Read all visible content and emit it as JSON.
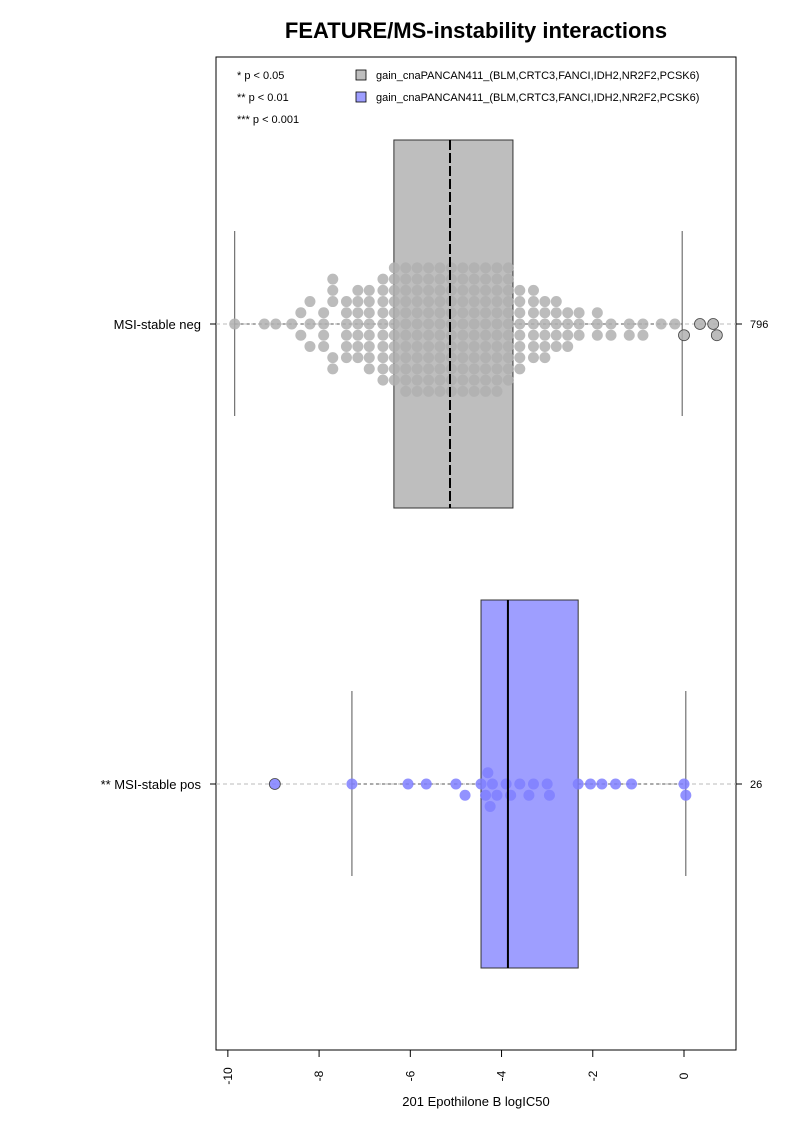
{
  "chart_data": {
    "type": "boxplot",
    "title": "FEATURE/MS-instability interactions",
    "x_label": "201 Epothilone B logIC50",
    "xlim": [
      -10.26,
      1.14
    ],
    "xticks": [
      -10,
      -8,
      -6,
      -4,
      -2,
      0
    ],
    "categories": [
      "MSI-stable neg",
      "** MSI-stable pos"
    ],
    "n": [
      796,
      26
    ],
    "significance_legend": [
      "* p < 0.05",
      "** p < 0.01",
      "*** p < 0.001"
    ],
    "series": [
      {
        "name": "gain_cnaPANCAN411_(BLM,CRTC3,FANCI,IDH2,NR2F2,PCSK6)",
        "color": "#bebebe",
        "point_color": "#b0b0b0",
        "whisker_low": -9.85,
        "q1": -6.36,
        "median": -5.13,
        "q3": -3.75,
        "whisker_high": -0.04,
        "values": [
          -9.85,
          -9.2,
          -8.95,
          -8.6,
          -8.4,
          -8.4,
          -8.2,
          -8.2,
          -8.2,
          -7.9,
          -7.9,
          -7.9,
          -7.9,
          -7.7,
          -7.7,
          -7.7,
          -7.7,
          -7.7,
          -7.4,
          -7.4,
          -7.4,
          -7.4,
          -7.4,
          -7.4,
          -7.15,
          -7.15,
          -7.15,
          -7.15,
          -7.15,
          -7.15,
          -7.15,
          -6.9,
          -6.9,
          -6.9,
          -6.9,
          -6.9,
          -6.9,
          -6.9,
          -6.9,
          -6.6,
          -6.6,
          -6.6,
          -6.6,
          -6.6,
          -6.6,
          -6.6,
          -6.6,
          -6.6,
          -6.6,
          -6.35,
          -6.35,
          -6.35,
          -6.35,
          -6.35,
          -6.35,
          -6.35,
          -6.35,
          -6.35,
          -6.35,
          -6.35,
          -6.1,
          -6.1,
          -6.1,
          -6.1,
          -6.1,
          -6.1,
          -6.1,
          -6.1,
          -6.1,
          -6.1,
          -6.1,
          -6.1,
          -5.85,
          -5.85,
          -5.85,
          -5.85,
          -5.85,
          -5.85,
          -5.85,
          -5.85,
          -5.85,
          -5.85,
          -5.85,
          -5.85,
          -5.6,
          -5.6,
          -5.6,
          -5.6,
          -5.6,
          -5.6,
          -5.6,
          -5.6,
          -5.6,
          -5.6,
          -5.6,
          -5.6,
          -5.35,
          -5.35,
          -5.35,
          -5.35,
          -5.35,
          -5.35,
          -5.35,
          -5.35,
          -5.35,
          -5.35,
          -5.35,
          -5.35,
          -5.1,
          -5.1,
          -5.1,
          -5.1,
          -5.1,
          -5.1,
          -5.1,
          -5.1,
          -5.1,
          -5.1,
          -5.1,
          -5.1,
          -4.85,
          -4.85,
          -4.85,
          -4.85,
          -4.85,
          -4.85,
          -4.85,
          -4.85,
          -4.85,
          -4.85,
          -4.85,
          -4.85,
          -4.6,
          -4.6,
          -4.6,
          -4.6,
          -4.6,
          -4.6,
          -4.6,
          -4.6,
          -4.6,
          -4.6,
          -4.6,
          -4.6,
          -4.35,
          -4.35,
          -4.35,
          -4.35,
          -4.35,
          -4.35,
          -4.35,
          -4.35,
          -4.35,
          -4.35,
          -4.35,
          -4.35,
          -4.1,
          -4.1,
          -4.1,
          -4.1,
          -4.1,
          -4.1,
          -4.1,
          -4.1,
          -4.1,
          -4.1,
          -4.1,
          -4.1,
          -3.85,
          -3.85,
          -3.85,
          -3.85,
          -3.85,
          -3.85,
          -3.85,
          -3.85,
          -3.85,
          -3.85,
          -3.85,
          -3.6,
          -3.6,
          -3.6,
          -3.6,
          -3.6,
          -3.6,
          -3.6,
          -3.6,
          -3.3,
          -3.3,
          -3.3,
          -3.3,
          -3.3,
          -3.3,
          -3.3,
          -3.05,
          -3.05,
          -3.05,
          -3.05,
          -3.05,
          -3.05,
          -2.8,
          -2.8,
          -2.8,
          -2.8,
          -2.8,
          -2.55,
          -2.55,
          -2.55,
          -2.55,
          -2.3,
          -2.3,
          -2.3,
          -1.9,
          -1.9,
          -1.9,
          -1.6,
          -1.6,
          -1.2,
          -1.2,
          -0.9,
          -0.9,
          -0.5,
          -0.2,
          0.0,
          0.35,
          0.64,
          0.72
        ]
      },
      {
        "name": "gain_cnaPANCAN411_(BLM,CRTC3,FANCI,IDH2,NR2F2,PCSK6)",
        "color": "#9e9eff",
        "point_color": "#7f7fff",
        "whisker_low": -7.28,
        "q1": -4.45,
        "median": -3.86,
        "q3": -2.32,
        "whisker_high": 0.04,
        "values": [
          -8.97,
          -7.28,
          -6.05,
          -5.65,
          -5.0,
          -4.8,
          -4.45,
          -4.35,
          -4.3,
          -4.25,
          -4.2,
          -4.1,
          -3.9,
          -3.8,
          -3.6,
          -3.4,
          -3.3,
          -3.0,
          -2.95,
          -2.32,
          -2.05,
          -1.8,
          -1.5,
          -1.15,
          0.0,
          0.04
        ]
      }
    ]
  }
}
